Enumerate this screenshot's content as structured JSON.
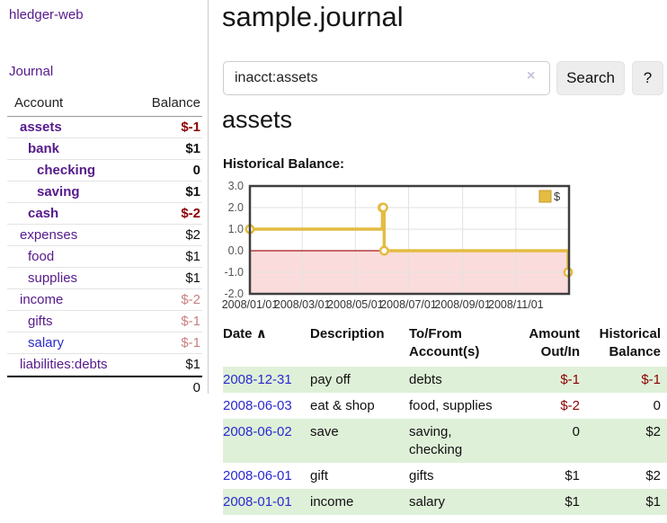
{
  "colors": {
    "purple_link": "#551a8b",
    "blue_link": "#2a2ad0",
    "negative": "#8b0000",
    "negative_soft": "#c98080",
    "row_highlight": "#dff0d8",
    "chart_line": "#e3bc42",
    "chart_negative_fill": "#fbdcdc",
    "chart_zero_line": "#a41a1a",
    "button_bg": "#ededed"
  },
  "sidebar": {
    "app_title": "hledger-web",
    "nav": {
      "journal_label": "Journal"
    },
    "table": {
      "account_header": "Account",
      "balance_header": "Balance"
    },
    "accounts": [
      {
        "label": "assets",
        "level": 0,
        "bold": true,
        "balance": "$-1",
        "balance_tone": "negative"
      },
      {
        "label": "bank",
        "level": 1,
        "bold": true,
        "balance": "$1",
        "balance_tone": "normal"
      },
      {
        "label": "checking",
        "level": 2,
        "bold": true,
        "balance": "0",
        "balance_tone": "normal"
      },
      {
        "label": "saving",
        "level": 2,
        "bold": true,
        "balance": "$1",
        "balance_tone": "normal"
      },
      {
        "label": "cash",
        "level": 1,
        "bold": true,
        "balance": "$-2",
        "balance_tone": "negative"
      },
      {
        "label": "expenses",
        "level": 0,
        "bold": false,
        "balance": "$2",
        "balance_tone": "normal"
      },
      {
        "label": "food",
        "level": 1,
        "bold": false,
        "balance": "$1",
        "balance_tone": "normal"
      },
      {
        "label": "supplies",
        "level": 1,
        "bold": false,
        "balance": "$1",
        "balance_tone": "normal"
      },
      {
        "label": "income",
        "level": 0,
        "bold": false,
        "balance": "$-2",
        "balance_tone": "negative_soft"
      },
      {
        "label": "gifts",
        "level": 1,
        "bold": false,
        "balance": "$-1",
        "balance_tone": "negative_soft"
      },
      {
        "label": "salary",
        "level": 1,
        "bold": false,
        "balance": "$-1",
        "balance_tone": "negative_soft",
        "link_tone": "blue"
      },
      {
        "label": "liabilities:debts",
        "level": 0,
        "bold": false,
        "balance": "$1",
        "balance_tone": "normal"
      }
    ],
    "total": "0"
  },
  "main": {
    "title": "sample.journal",
    "search": {
      "value": "inacct:assets",
      "clear_icon": "×",
      "button_label": "Search",
      "help_label": "?"
    },
    "account_heading": "assets",
    "chart_label": "Historical Balance:"
  },
  "chart_data": {
    "type": "line",
    "step": "after",
    "title": "Historical Balance",
    "series": [
      {
        "name": "$",
        "color": "#e3bc42",
        "points": [
          [
            "2008-01-01",
            1
          ],
          [
            "2008-06-01",
            2
          ],
          [
            "2008-06-02",
            2
          ],
          [
            "2008-06-03",
            0
          ],
          [
            "2008-12-31",
            -1
          ]
        ]
      }
    ],
    "xlim": [
      "2008-01-01",
      "2009-01-01"
    ],
    "ylim": [
      -2,
      3
    ],
    "yticks": [
      "3.0",
      "2.0",
      "1.0",
      "0.0",
      "-1.0",
      "-2.0"
    ],
    "xticks": [
      "2008/01/01",
      "2008/03/01",
      "2008/05/01",
      "2008/07/01",
      "2008/09/01",
      "2008/11/01"
    ],
    "legend": {
      "label": "$",
      "position": "top-right"
    },
    "grid": true
  },
  "transactions": {
    "headers": {
      "date": "Date",
      "sort_arrow": "∧",
      "description": "Description",
      "account": "To/From Account(s)",
      "amount": "Amount Out/In",
      "balance": "Historical Balance"
    },
    "rows": [
      {
        "date": "2008-12-31",
        "description": "pay off",
        "accounts": "debts",
        "amount": "$-1",
        "amount_negative": true,
        "balance": "$-1",
        "balance_negative": true,
        "highlight": true
      },
      {
        "date": "2008-06-03",
        "description": "eat & shop",
        "accounts": "food, supplies",
        "amount": "$-2",
        "amount_negative": true,
        "balance": "0",
        "balance_negative": false,
        "highlight": false
      },
      {
        "date": "2008-06-02",
        "description": "save",
        "accounts": "saving, checking",
        "amount": "0",
        "amount_negative": false,
        "balance": "$2",
        "balance_negative": false,
        "highlight": true
      },
      {
        "date": "2008-06-01",
        "description": "gift",
        "accounts": "gifts",
        "amount": "$1",
        "amount_negative": false,
        "balance": "$2",
        "balance_negative": false,
        "highlight": false
      },
      {
        "date": "2008-01-01",
        "description": "income",
        "accounts": "salary",
        "amount": "$1",
        "amount_negative": false,
        "balance": "$1",
        "balance_negative": false,
        "highlight": true
      }
    ]
  }
}
